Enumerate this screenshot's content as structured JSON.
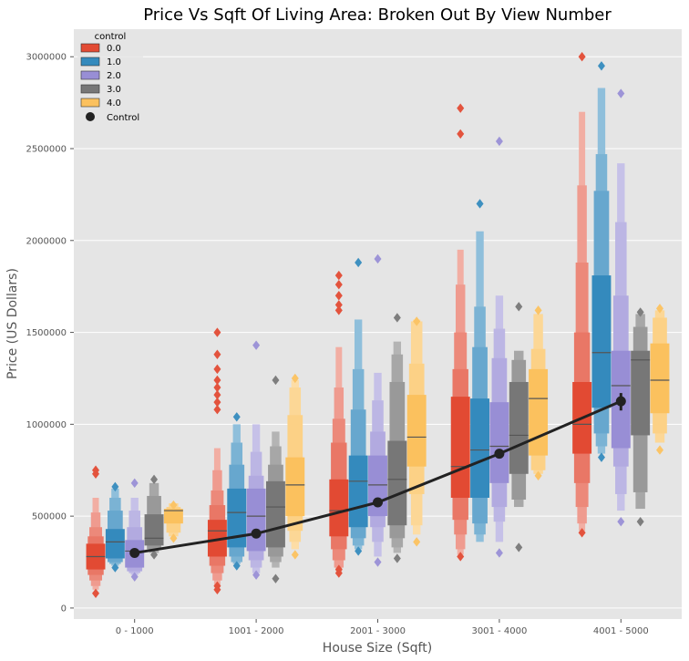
{
  "chart_data": {
    "type": "boxen",
    "title": "Price Vs Sqft Of Living Area: Broken Out By View Number",
    "xlabel": "House Size (Sqft)",
    "ylabel": "Price (US Dollars)",
    "categories": [
      "0 - 1000",
      "1001 - 2000",
      "2001 - 3000",
      "3001 - 4000",
      "4001 - 5000"
    ],
    "y_ticks": [
      0,
      500000,
      1000000,
      1500000,
      2000000,
      2500000,
      3000000
    ],
    "ylim": [
      -60000,
      3150000
    ],
    "grid": true,
    "legend": {
      "title": "control",
      "placement": "top-left",
      "entries": [
        "0.0",
        "1.0",
        "2.0",
        "3.0",
        "4.0"
      ],
      "line_entry": "Control"
    },
    "series": [
      {
        "name": "0.0",
        "color": "#E24A33",
        "boxes": [
          {
            "median": 280000,
            "q1": 210000,
            "q3": 350000,
            "lv": [
              [
                180000,
                390000
              ],
              [
                150000,
                440000
              ],
              [
                120000,
                520000
              ],
              [
                100000,
                600000
              ]
            ],
            "outliers": [
              80000,
              730000,
              750000
            ]
          },
          {
            "median": 420000,
            "q1": 280000,
            "q3": 480000,
            "lv": [
              [
                230000,
                560000
              ],
              [
                190000,
                640000
              ],
              [
                150000,
                750000
              ],
              [
                120000,
                870000
              ]
            ],
            "outliers": [
              100000,
              120000,
              1080000,
              1120000,
              1160000,
              1200000,
              1240000,
              1300000,
              1380000,
              1500000
            ]
          },
          {
            "median": 530000,
            "q1": 390000,
            "q3": 700000,
            "lv": [
              [
                320000,
                900000
              ],
              [
                260000,
                1030000
              ],
              [
                220000,
                1200000
              ],
              [
                200000,
                1420000
              ]
            ],
            "outliers": [
              190000,
              210000,
              1620000,
              1650000,
              1700000,
              1760000,
              1810000
            ]
          },
          {
            "median": 770000,
            "q1": 600000,
            "q3": 1150000,
            "lv": [
              [
                480000,
                1300000
              ],
              [
                400000,
                1500000
              ],
              [
                320000,
                1760000
              ],
              [
                290000,
                1950000
              ]
            ],
            "outliers": [
              280000,
              2580000,
              2720000
            ]
          },
          {
            "median": 1000000,
            "q1": 840000,
            "q3": 1230000,
            "lv": [
              [
                680000,
                1500000
              ],
              [
                550000,
                1880000
              ],
              [
                460000,
                2300000
              ],
              [
                420000,
                2700000
              ]
            ],
            "outliers": [
              410000,
              3000000
            ]
          }
        ]
      },
      {
        "name": "1.0",
        "color": "#348ABD",
        "boxes": [
          {
            "median": 360000,
            "q1": 270000,
            "q3": 430000,
            "lv": [
              [
                250000,
                530000
              ],
              [
                240000,
                600000
              ],
              [
                230000,
                650000
              ]
            ],
            "outliers": [
              220000,
              660000
            ]
          },
          {
            "median": 520000,
            "q1": 330000,
            "q3": 650000,
            "lv": [
              [
                280000,
                780000
              ],
              [
                250000,
                900000
              ],
              [
                240000,
                1000000
              ]
            ],
            "outliers": [
              230000,
              1040000
            ]
          },
          {
            "median": 690000,
            "q1": 440000,
            "q3": 830000,
            "lv": [
              [
                380000,
                1080000
              ],
              [
                340000,
                1300000
              ],
              [
                320000,
                1570000
              ]
            ],
            "outliers": [
              310000,
              1880000
            ]
          },
          {
            "median": 860000,
            "q1": 600000,
            "q3": 1140000,
            "lv": [
              [
                460000,
                1420000
              ],
              [
                400000,
                1640000
              ],
              [
                360000,
                2050000
              ]
            ],
            "outliers": [
              2200000
            ]
          },
          {
            "median": 1390000,
            "q1": 1090000,
            "q3": 1810000,
            "lv": [
              [
                950000,
                2270000
              ],
              [
                880000,
                2470000
              ],
              [
                840000,
                2830000
              ]
            ],
            "outliers": [
              820000,
              2950000
            ]
          }
        ]
      },
      {
        "name": "2.0",
        "color": "#988ED5",
        "boxes": [
          {
            "median": 310000,
            "q1": 220000,
            "q3": 370000,
            "lv": [
              [
                200000,
                440000
              ],
              [
                190000,
                530000
              ],
              [
                180000,
                600000
              ]
            ],
            "outliers": [
              170000,
              680000
            ]
          },
          {
            "median": 500000,
            "q1": 310000,
            "q3": 650000,
            "lv": [
              [
                260000,
                720000
              ],
              [
                220000,
                850000
              ],
              [
                190000,
                1000000
              ]
            ],
            "outliers": [
              180000,
              1430000
            ]
          },
          {
            "median": 670000,
            "q1": 500000,
            "q3": 830000,
            "lv": [
              [
                440000,
                960000
              ],
              [
                360000,
                1130000
              ],
              [
                280000,
                1280000
              ]
            ],
            "outliers": [
              250000,
              1900000
            ]
          },
          {
            "median": 880000,
            "q1": 680000,
            "q3": 1120000,
            "lv": [
              [
                550000,
                1360000
              ],
              [
                470000,
                1520000
              ],
              [
                360000,
                1700000
              ]
            ],
            "outliers": [
              300000,
              2540000
            ]
          },
          {
            "median": 1210000,
            "q1": 870000,
            "q3": 1400000,
            "lv": [
              [
                770000,
                1700000
              ],
              [
                620000,
                2100000
              ],
              [
                530000,
                2420000
              ]
            ],
            "outliers": [
              470000,
              2800000
            ]
          }
        ]
      },
      {
        "name": "3.0",
        "color": "#777777",
        "boxes": [
          {
            "median": 380000,
            "q1": 340000,
            "q3": 510000,
            "lv": [
              [
                320000,
                610000
              ],
              [
                300000,
                680000
              ]
            ],
            "outliers": [
              290000,
              700000
            ]
          },
          {
            "median": 550000,
            "q1": 330000,
            "q3": 690000,
            "lv": [
              [
                280000,
                780000
              ],
              [
                250000,
                880000
              ],
              [
                220000,
                960000
              ]
            ],
            "outliers": [
              160000,
              1240000
            ]
          },
          {
            "median": 700000,
            "q1": 450000,
            "q3": 910000,
            "lv": [
              [
                380000,
                1230000
              ],
              [
                330000,
                1380000
              ],
              [
                300000,
                1450000
              ]
            ],
            "outliers": [
              270000,
              1580000
            ]
          },
          {
            "median": 940000,
            "q1": 730000,
            "q3": 1230000,
            "lv": [
              [
                590000,
                1350000
              ],
              [
                550000,
                1400000
              ]
            ],
            "outliers": [
              330000,
              1640000
            ]
          },
          {
            "median": 1350000,
            "q1": 940000,
            "q3": 1400000,
            "lv": [
              [
                630000,
                1530000
              ],
              [
                540000,
                1600000
              ]
            ],
            "outliers": [
              470000,
              1610000
            ]
          }
        ]
      },
      {
        "name": "4.0",
        "color": "#FBC15E",
        "boxes": [
          {
            "median": 530000,
            "q1": 460000,
            "q3": 540000,
            "lv": [
              [
                410000,
                550000
              ],
              [
                390000,
                570000
              ]
            ],
            "outliers": [
              380000,
              560000
            ]
          },
          {
            "median": 670000,
            "q1": 500000,
            "q3": 820000,
            "lv": [
              [
                420000,
                1050000
              ],
              [
                360000,
                1200000
              ],
              [
                320000,
                1240000
              ]
            ],
            "outliers": [
              290000,
              1250000
            ]
          },
          {
            "median": 930000,
            "q1": 770000,
            "q3": 1160000,
            "lv": [
              [
                620000,
                1330000
              ],
              [
                450000,
                1560000
              ],
              [
                400000,
                1570000
              ]
            ],
            "outliers": [
              360000,
              1560000
            ]
          },
          {
            "median": 1140000,
            "q1": 830000,
            "q3": 1300000,
            "lv": [
              [
                750000,
                1410000
              ],
              [
                730000,
                1600000
              ]
            ],
            "outliers": [
              720000,
              1620000
            ]
          },
          {
            "median": 1240000,
            "q1": 1060000,
            "q3": 1440000,
            "lv": [
              [
                950000,
                1580000
              ],
              [
                900000,
                1620000
              ]
            ],
            "outliers": [
              860000,
              1630000
            ]
          }
        ]
      }
    ],
    "control_line": {
      "name": "Control",
      "color": "#222222",
      "values": [
        300000,
        405000,
        575000,
        840000,
        1125000
      ],
      "error": [
        [
          0,
          0
        ],
        [
          0,
          0
        ],
        [
          0,
          0
        ],
        [
          0,
          0
        ],
        [
          1075000,
          1170000
        ]
      ]
    }
  }
}
